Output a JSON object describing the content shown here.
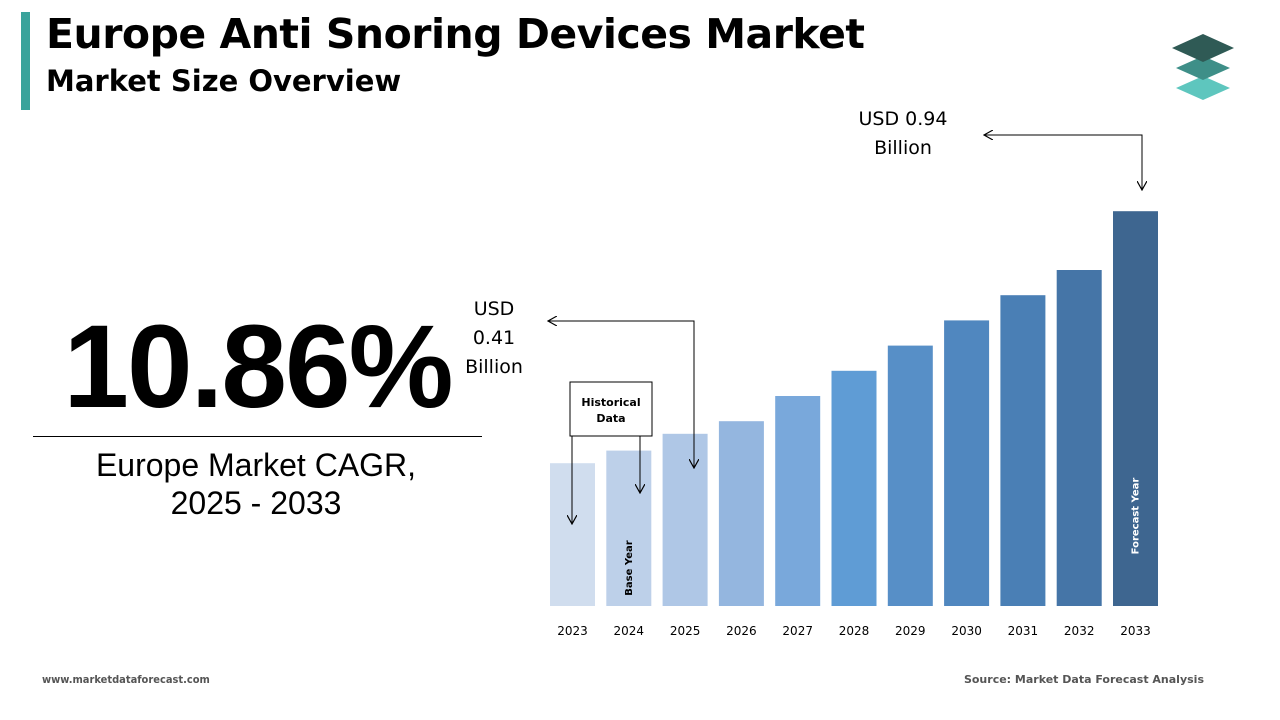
{
  "header": {
    "title": "Europe Anti Snoring Devices Market",
    "subtitle": "Market Size Overview",
    "accent_color": "#3aa39b",
    "logo_icon": "layered-stack-icon"
  },
  "cagr": {
    "value": "10.86%",
    "label_line1": "Europe Market CAGR,",
    "label_line2": "2025 - 2033"
  },
  "chart_data": {
    "type": "bar",
    "categories": [
      "2023",
      "2024",
      "2025",
      "2026",
      "2027",
      "2028",
      "2029",
      "2030",
      "2031",
      "2032",
      "2033"
    ],
    "values": [
      0.34,
      0.37,
      0.41,
      0.44,
      0.5,
      0.56,
      0.62,
      0.68,
      0.74,
      0.8,
      0.94
    ],
    "colors": [
      "#d0ddee",
      "#bdd0e9",
      "#afc7e6",
      "#94b6df",
      "#79a8db",
      "#5f9cd5",
      "#578fc7",
      "#5087bf",
      "#4a7fb5",
      "#4575a7",
      "#3e6690"
    ],
    "base_year_index": 1,
    "base_year_label": "Base Year",
    "forecast_year_index": 10,
    "forecast_year_label": "Forecast Year",
    "historical_label_line1": "Historical",
    "historical_label_line2": "Data",
    "callout_2025": {
      "line1": "USD",
      "line2": "0.41",
      "line3": "Billion"
    },
    "callout_2033": {
      "line1": "USD 0.94",
      "line2": "Billion"
    },
    "ylim": [
      0,
      1
    ]
  },
  "footer": {
    "website": "www.marketdataforecast.com",
    "source": "Source: Market Data Forecast Analysis"
  }
}
